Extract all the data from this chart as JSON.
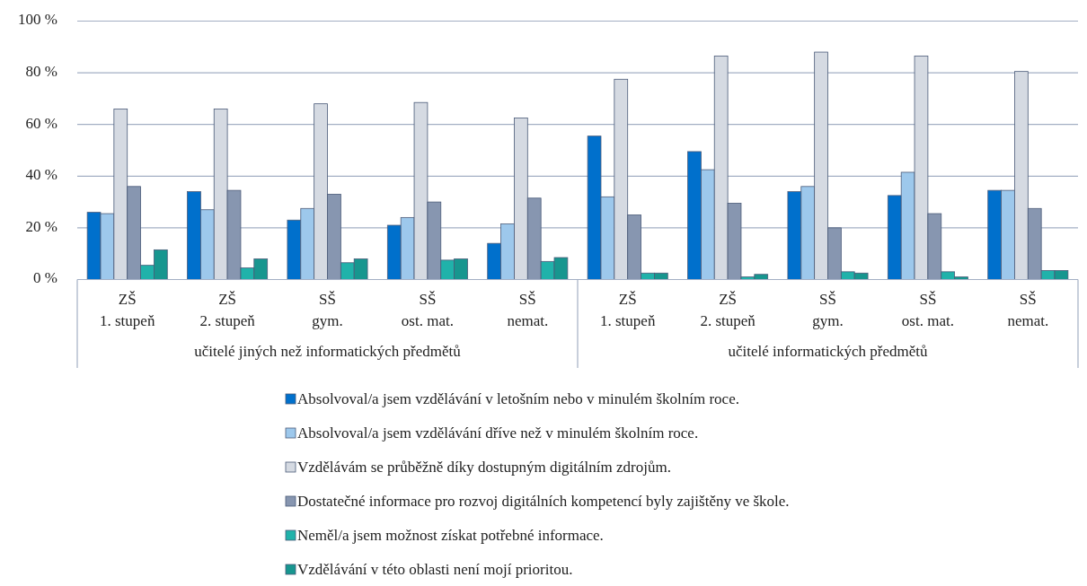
{
  "chart_data": {
    "type": "bar",
    "categories": [
      "ZŠ\n1. stupeň",
      "ZŠ\n2. stupeň",
      "SŠ\ngym.",
      "SŠ\nost. mat.",
      "SŠ\nnemat.",
      "ZŠ\n1. stupeň",
      "ZŠ\n2. stupeň",
      "SŠ\ngym.",
      "SŠ\nost. mat.",
      "SŠ\nnemat."
    ],
    "series": [
      {
        "name": "Absolvoval/a jsem vzdělávání v letošním nebo v minulém školním roce.",
        "color": "#0070cc",
        "values": [
          26,
          34,
          23,
          21,
          14,
          55.5,
          49.5,
          34,
          32.5,
          34.5
        ]
      },
      {
        "name": "Absolvoval/a jsem vzdělávání dříve než v minulém školním roce.",
        "color": "#9dc8ec",
        "values": [
          25.5,
          27,
          27.5,
          24,
          21.5,
          32,
          42.5,
          36,
          41.5,
          34.5
        ]
      },
      {
        "name": "Vzdělávám se průběžně díky dostupným digitálním zdrojům.",
        "color": "#d5dae2",
        "values": [
          66,
          66,
          68,
          68.5,
          62.5,
          77.5,
          86.5,
          88,
          86.5,
          80.5
        ]
      },
      {
        "name": "Dostatečné informace pro rozvoj digitálních kompetencí byly zajištěny ve škole.",
        "color": "#8796b0",
        "values": [
          36,
          34.5,
          33,
          30,
          31.5,
          25,
          29.5,
          20,
          25.5,
          27.5
        ]
      },
      {
        "name": "Neměl/a jsem možnost získat potřebné informace.",
        "color": "#20b2aa",
        "values": [
          5.5,
          4.5,
          6.5,
          7.5,
          7,
          2.5,
          1,
          3,
          3,
          3.5
        ]
      },
      {
        "name": "Vzdělávání v této oblasti není mojí prioritou.",
        "color": "#17968f",
        "values": [
          11.5,
          8,
          8,
          8,
          8.5,
          2.5,
          2,
          2.5,
          1,
          3.5
        ]
      }
    ],
    "annotations": [
      "učitelé jiných než informatických předmětů",
      "učitelé informatických předmětů"
    ],
    "ylim": [
      0,
      100
    ],
    "yticks": [
      {
        "value": 0,
        "label": "0 %"
      },
      {
        "value": 20,
        "label": "20 %"
      },
      {
        "value": 40,
        "label": "40 %"
      },
      {
        "value": 60,
        "label": "60 %"
      },
      {
        "value": 80,
        "label": "80 %"
      },
      {
        "value": 100,
        "label": "100 %"
      }
    ],
    "grid": "y",
    "legend": "bottom"
  }
}
